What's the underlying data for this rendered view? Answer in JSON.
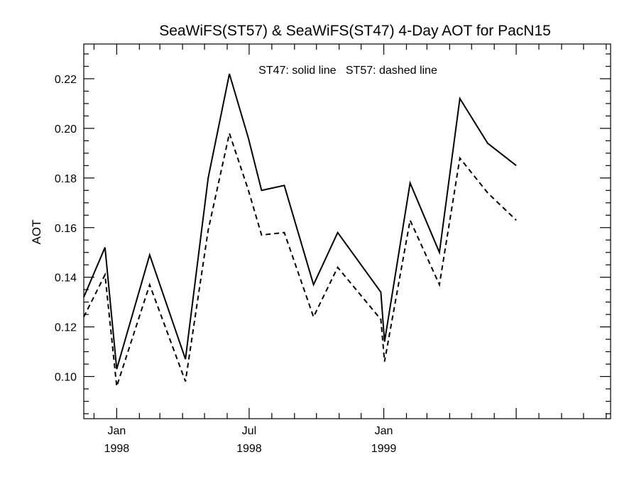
{
  "chart_data": {
    "type": "line",
    "title": "SeaWiFS(ST57) & SeaWiFS(ST47) 4-Day AOT for PacN15",
    "annotation": "ST47: solid line   ST57: dashed line",
    "xlabel": "",
    "ylabel": "AOT",
    "ylim": [
      0.083,
      0.234
    ],
    "xlim": [
      "1997-11-17",
      "1999-11-07"
    ],
    "y_ticks": [
      "0.10",
      "0.12",
      "0.14",
      "0.16",
      "0.18",
      "0.20",
      "0.22"
    ],
    "x_ticks": [
      {
        "date": "1998-01-01",
        "month": "Jan",
        "year": "1998"
      },
      {
        "date": "1998-07-01",
        "month": "Jul",
        "year": "1998"
      },
      {
        "date": "1999-01-01",
        "month": "Jan",
        "year": "1999"
      }
    ],
    "grid": false,
    "series": [
      {
        "name": "ST47",
        "style": "solid",
        "points": [
          [
            "1997-11-17",
            0.132
          ],
          [
            "1997-12-16",
            0.152
          ],
          [
            "1998-01-01",
            0.103
          ],
          [
            "1998-02-15",
            0.149
          ],
          [
            "1998-04-05",
            0.107
          ],
          [
            "1998-05-06",
            0.18
          ],
          [
            "1998-06-04",
            0.222
          ],
          [
            "1998-06-30",
            0.196
          ],
          [
            "1998-07-18",
            0.175
          ],
          [
            "1998-08-18",
            0.177
          ],
          [
            "1998-09-27",
            0.137
          ],
          [
            "1998-10-30",
            0.158
          ],
          [
            "1998-12-28",
            0.134
          ],
          [
            "1999-01-02",
            0.114
          ],
          [
            "1999-02-06",
            0.178
          ],
          [
            "1999-03-18",
            0.15
          ],
          [
            "1999-04-15",
            0.212
          ],
          [
            "1999-05-23",
            0.194
          ],
          [
            "1999-07-01",
            0.185
          ]
        ]
      },
      {
        "name": "ST57",
        "style": "dashed",
        "points": [
          [
            "1997-11-17",
            0.124
          ],
          [
            "1997-12-16",
            0.141
          ],
          [
            "1998-01-01",
            0.096
          ],
          [
            "1998-02-15",
            0.137
          ],
          [
            "1998-04-05",
            0.098
          ],
          [
            "1998-05-06",
            0.159
          ],
          [
            "1998-06-04",
            0.198
          ],
          [
            "1998-06-30",
            0.175
          ],
          [
            "1998-07-18",
            0.157
          ],
          [
            "1998-08-18",
            0.158
          ],
          [
            "1998-09-27",
            0.124
          ],
          [
            "1998-10-30",
            0.144
          ],
          [
            "1998-12-28",
            0.123
          ],
          [
            "1999-01-02",
            0.106
          ],
          [
            "1999-02-06",
            0.163
          ],
          [
            "1999-03-18",
            0.137
          ],
          [
            "1999-04-15",
            0.188
          ],
          [
            "1999-05-23",
            0.174
          ],
          [
            "1999-07-01",
            0.163
          ]
        ]
      }
    ]
  }
}
